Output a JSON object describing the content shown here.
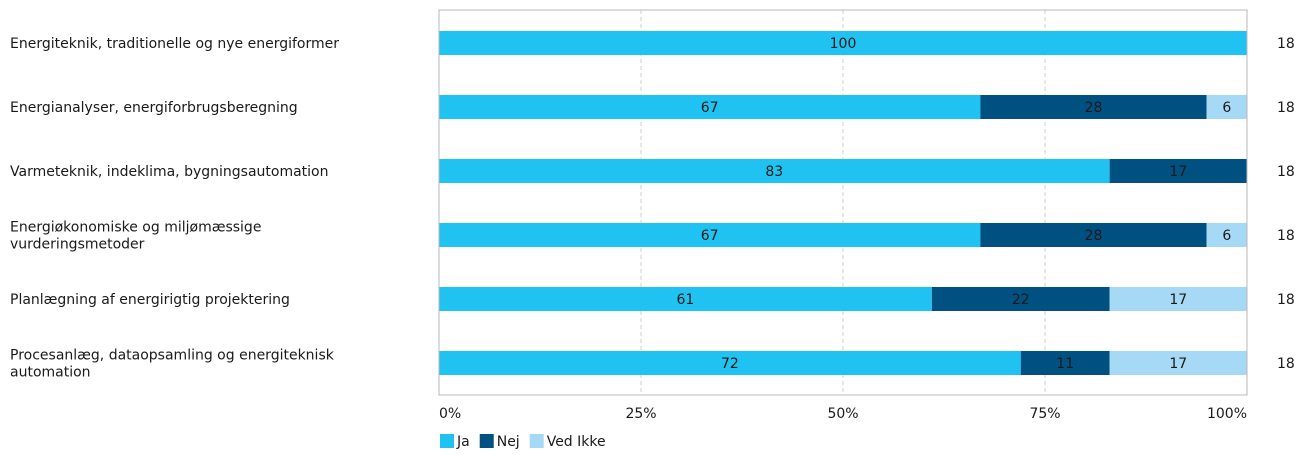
{
  "chart_data": {
    "type": "bar",
    "orientation": "horizontal",
    "stacked": true,
    "percent": true,
    "categories": [
      [
        "Energiteknik, traditionelle og nye energiformer"
      ],
      [
        "Energianalyser, energiforbrugsberegning"
      ],
      [
        "Varmeteknik, indeklima, bygningsautomation"
      ],
      [
        "Energiøkonomiske og miljømæssige",
        "vurderingsmetoder"
      ],
      [
        "Planlægning af energirigtig projektering"
      ],
      [
        "Procesanlæg, dataopsamling og energiteknisk",
        "automation"
      ]
    ],
    "series": [
      {
        "name": "Ja",
        "color": "#1fc2f0",
        "values": [
          100,
          67,
          83,
          67,
          61,
          72
        ]
      },
      {
        "name": "Nej",
        "color": "#005081",
        "values": [
          0,
          28,
          17,
          28,
          22,
          11
        ]
      },
      {
        "name": "Ved Ikke",
        "color": "#a6d9f5",
        "values": [
          0,
          6,
          0,
          6,
          17,
          17
        ]
      }
    ],
    "counts": [
      "18",
      "18",
      "18",
      "18",
      "18",
      "18"
    ],
    "xticks": [
      "0%",
      "25%",
      "50%",
      "75%",
      "100%"
    ],
    "xlim": [
      0,
      100
    ],
    "grid": true,
    "legend_position": "bottom-left"
  }
}
